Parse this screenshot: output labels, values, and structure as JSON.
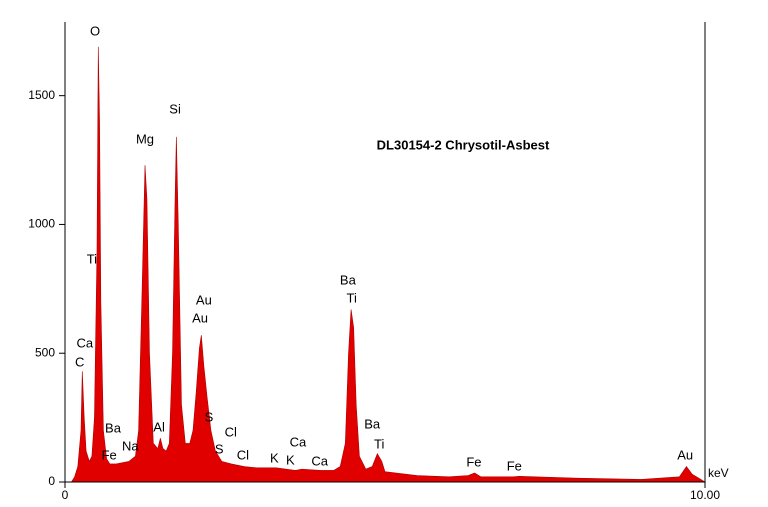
{
  "chart_data": {
    "type": "area",
    "title": "DL30154-2 Chrysotil-Asbest",
    "x_label": "keV",
    "x": [
      0,
      0.1,
      0.15,
      0.2,
      0.25,
      0.27,
      0.3,
      0.33,
      0.38,
      0.42,
      0.46,
      0.5,
      0.52,
      0.54,
      0.56,
      0.6,
      0.65,
      0.7,
      0.8,
      0.9,
      1.0,
      1.1,
      1.15,
      1.2,
      1.25,
      1.28,
      1.32,
      1.38,
      1.45,
      1.49,
      1.53,
      1.58,
      1.63,
      1.68,
      1.72,
      1.74,
      1.77,
      1.82,
      1.88,
      1.95,
      2.0,
      2.05,
      2.1,
      2.13,
      2.17,
      2.22,
      2.28,
      2.35,
      2.45,
      2.6,
      2.8,
      3.0,
      3.3,
      3.6,
      3.7,
      4.0,
      4.2,
      4.3,
      4.38,
      4.43,
      4.47,
      4.51,
      4.55,
      4.6,
      4.7,
      4.8,
      4.88,
      4.95,
      5.0,
      5.5,
      6.0,
      6.3,
      6.4,
      6.5,
      7.0,
      7.1,
      8.0,
      9.0,
      9.6,
      9.71,
      9.8,
      10.0
    ],
    "values": [
      0,
      0,
      20,
      60,
      200,
      430,
      250,
      120,
      80,
      100,
      250,
      900,
      1690,
      1400,
      700,
      200,
      90,
      70,
      70,
      75,
      80,
      100,
      200,
      700,
      1230,
      1100,
      500,
      150,
      130,
      170,
      130,
      120,
      150,
      500,
      1100,
      1340,
      1000,
      300,
      150,
      150,
      200,
      350,
      520,
      570,
      450,
      330,
      200,
      120,
      80,
      70,
      60,
      55,
      55,
      45,
      50,
      45,
      45,
      60,
      150,
      500,
      670,
      600,
      300,
      100,
      50,
      60,
      110,
      80,
      40,
      25,
      20,
      25,
      35,
      20,
      20,
      22,
      15,
      10,
      20,
      60,
      30,
      0
    ],
    "color": "#e00000",
    "xlim": [
      0,
      10
    ],
    "xticks": [
      0,
      {
        "value": 10,
        "label": "10.00"
      }
    ],
    "ylim": [
      0,
      1786
    ],
    "yticks": [
      0,
      500,
      1000,
      1500
    ],
    "annotations": [
      {
        "text": "O",
        "x": 0.47,
        "y": 1747
      },
      {
        "text": "Ti",
        "x": 0.42,
        "y": 862
      },
      {
        "text": "Ca",
        "x": 0.31,
        "y": 536
      },
      {
        "text": "C",
        "x": 0.23,
        "y": 462
      },
      {
        "text": "Mg",
        "x": 1.25,
        "y": 1328
      },
      {
        "text": "Si",
        "x": 1.72,
        "y": 1444
      },
      {
        "text": "Au",
        "x": 2.17,
        "y": 703
      },
      {
        "text": "Au",
        "x": 2.11,
        "y": 633
      },
      {
        "text": "Ba",
        "x": 4.42,
        "y": 780
      },
      {
        "text": "Ti",
        "x": 4.48,
        "y": 710
      },
      {
        "text": "Ba",
        "x": 4.8,
        "y": 221
      },
      {
        "text": "Ti",
        "x": 4.91,
        "y": 144
      },
      {
        "text": "S",
        "x": 2.25,
        "y": 248
      },
      {
        "text": "S",
        "x": 2.41,
        "y": 124
      },
      {
        "text": "Cl",
        "x": 2.59,
        "y": 190
      },
      {
        "text": "Cl",
        "x": 2.78,
        "y": 101
      },
      {
        "text": "K",
        "x": 3.27,
        "y": 89
      },
      {
        "text": "K",
        "x": 3.52,
        "y": 81
      },
      {
        "text": "Ca",
        "x": 3.64,
        "y": 151
      },
      {
        "text": "Ca",
        "x": 3.98,
        "y": 78
      },
      {
        "text": "Ba",
        "x": 0.75,
        "y": 206
      },
      {
        "text": "Fe",
        "x": 0.69,
        "y": 101
      },
      {
        "text": "Na",
        "x": 1.02,
        "y": 136
      },
      {
        "text": "Al",
        "x": 1.47,
        "y": 210
      },
      {
        "text": "Fe",
        "x": 6.39,
        "y": 74
      },
      {
        "text": "Fe",
        "x": 7.02,
        "y": 58
      },
      {
        "text": "Au",
        "x": 9.69,
        "y": 101
      }
    ]
  }
}
